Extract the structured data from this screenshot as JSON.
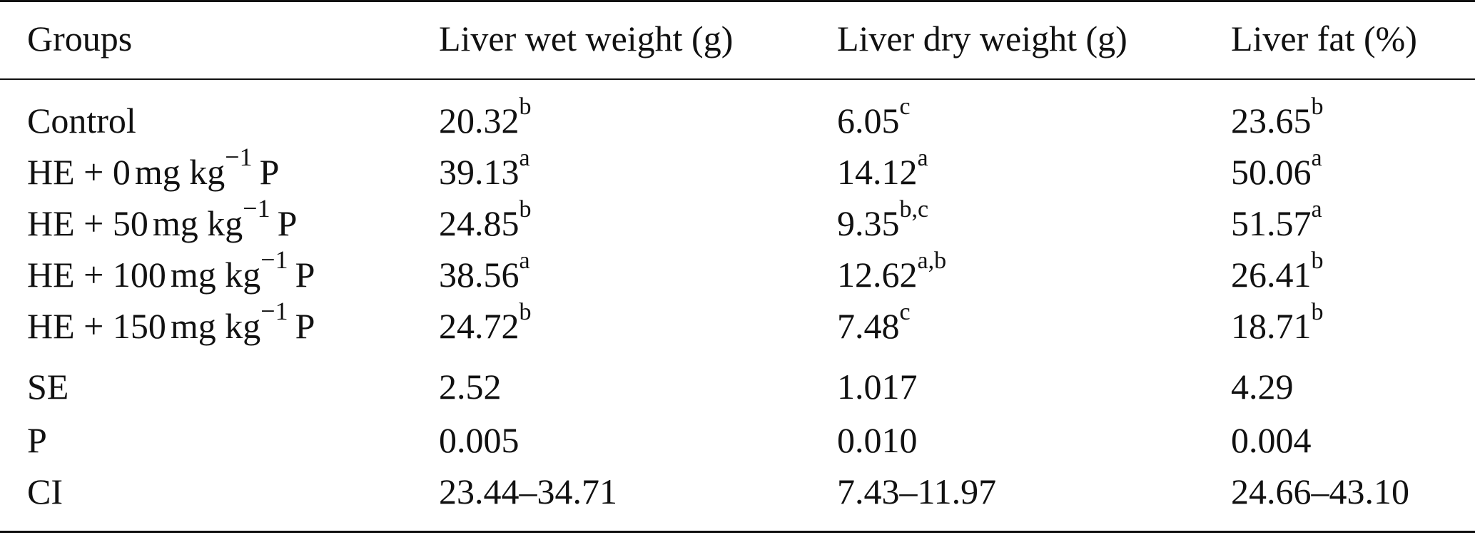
{
  "table": {
    "headers": [
      "Groups",
      "Liver wet weight (g)",
      "Liver dry weight (g)",
      "Liver fat (%)"
    ],
    "rows": [
      {
        "group": {
          "prefix": "Control",
          "dose": "",
          "unit": "",
          "exp": "",
          "suffix": ""
        },
        "wet": {
          "value": "20.32",
          "sup": "b"
        },
        "dry": {
          "value": "6.05",
          "sup": "c"
        },
        "fat": {
          "value": "23.65",
          "sup": "b"
        }
      },
      {
        "group": {
          "prefix": "HE + ",
          "dose": "0",
          "unit": "mg kg",
          "exp": "−1",
          "suffix": "P"
        },
        "wet": {
          "value": "39.13",
          "sup": "a"
        },
        "dry": {
          "value": "14.12",
          "sup": "a"
        },
        "fat": {
          "value": "50.06",
          "sup": "a"
        }
      },
      {
        "group": {
          "prefix": "HE + ",
          "dose": "50",
          "unit": "mg kg",
          "exp": "−1",
          "suffix": "P"
        },
        "wet": {
          "value": "24.85",
          "sup": "b"
        },
        "dry": {
          "value": "9.35",
          "sup": "b,c"
        },
        "fat": {
          "value": "51.57",
          "sup": "a"
        }
      },
      {
        "group": {
          "prefix": "HE + ",
          "dose": "100",
          "unit": "mg kg",
          "exp": "−1",
          "suffix": "P"
        },
        "wet": {
          "value": "38.56",
          "sup": "a"
        },
        "dry": {
          "value": "12.62",
          "sup": "a,b"
        },
        "fat": {
          "value": "26.41",
          "sup": "b"
        }
      },
      {
        "group": {
          "prefix": "HE + ",
          "dose": "150",
          "unit": "mg kg",
          "exp": "−1",
          "suffix": "P"
        },
        "wet": {
          "value": "24.72",
          "sup": "b"
        },
        "dry": {
          "value": "7.48",
          "sup": "c"
        },
        "fat": {
          "value": "18.71",
          "sup": "b"
        }
      },
      {
        "group": {
          "prefix": "SE",
          "dose": "",
          "unit": "",
          "exp": "",
          "suffix": ""
        },
        "wet": {
          "value": "2.52",
          "sup": ""
        },
        "dry": {
          "value": "1.017",
          "sup": ""
        },
        "fat": {
          "value": "4.29",
          "sup": ""
        }
      },
      {
        "group": {
          "prefix": "P",
          "dose": "",
          "unit": "",
          "exp": "",
          "suffix": ""
        },
        "wet": {
          "value": "0.005",
          "sup": ""
        },
        "dry": {
          "value": "0.010",
          "sup": ""
        },
        "fat": {
          "value": "0.004",
          "sup": ""
        }
      },
      {
        "group": {
          "prefix": "CI",
          "dose": "",
          "unit": "",
          "exp": "",
          "suffix": ""
        },
        "wet": {
          "value": "23.44–34.71",
          "sup": ""
        },
        "dry": {
          "value": "7.43–11.97",
          "sup": ""
        },
        "fat": {
          "value": "24.66–43.10",
          "sup": ""
        }
      }
    ]
  }
}
